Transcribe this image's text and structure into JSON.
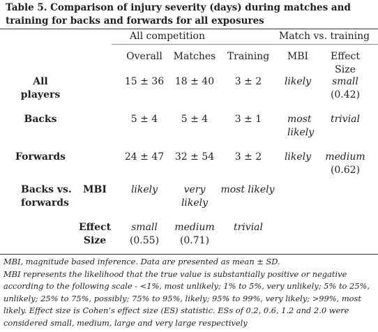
{
  "title": "Table 5. Comparison of injury severity (days) during matches and training for backs and forwards for all exposures",
  "groups": {
    "all_competition": "All competition",
    "match_vs_training": "Match vs. training"
  },
  "columns": {
    "overall": "Overall",
    "matches": "Matches",
    "training": "Training",
    "mbi": "MBI",
    "effect_size": [
      "Effect",
      "Size"
    ]
  },
  "rows": {
    "all_players": {
      "label": [
        "All",
        "players"
      ],
      "overall": "15 ± 36",
      "matches": "18 ± 40",
      "training": "3 ± 2",
      "mbi": "likely",
      "es": "small",
      "es_value": "(0.42)"
    },
    "backs": {
      "label": "Backs",
      "overall": "5 ± 4",
      "matches": "5 ± 4",
      "training": "3 ± 1",
      "mbi": [
        "most",
        "likely"
      ],
      "es": "trivial"
    },
    "forwards": {
      "label": "Forwards",
      "overall": "24 ± 47",
      "matches": "32 ± 54",
      "training": "3 ± 2",
      "mbi": "likely",
      "es": "medium",
      "es_value": "(0.62)"
    },
    "backs_vs_forwards": {
      "label": [
        "Backs vs.",
        "forwards"
      ],
      "mbi_label": "MBI",
      "overall": "likely",
      "matches": [
        "very",
        "likely"
      ],
      "training": "most likely",
      "es_label": [
        "Effect",
        "Size"
      ],
      "es_overall": "small",
      "es_overall_value": "(0.55)",
      "es_matches": "medium",
      "es_matches_value": "(0.71)",
      "es_training": "trivial"
    }
  },
  "notes": {
    "abbrev": "MBI, magnitude based inference. Data are presented as mean ± SD.",
    "explanation": "MBI represents the likelihood that the true value is substantially positive or negative according to the following scale - <1%, most unlikely; 1% to 5%, very unlikely; 5% to 25%, unlikely; 25% to 75%, possibly; 75% to 95%, likely; 95% to 99%, very likely; >99%, most likely. Effect size is Cohen’s effect size (ES) statistic. ESs of 0.2, 0.6, 1.2 and 2.0 were considered small, medium, large and very large respectively"
  }
}
